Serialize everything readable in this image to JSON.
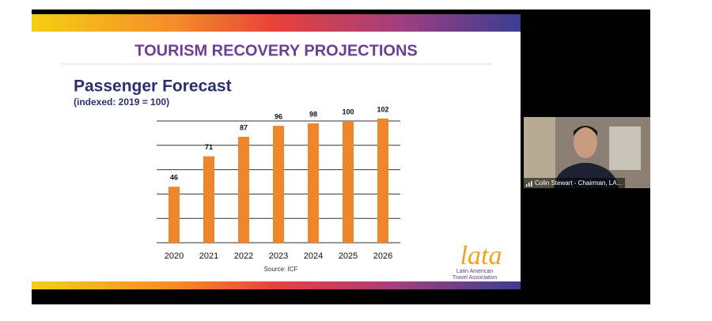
{
  "slide": {
    "title": "TOURISM RECOVERY PROJECTIONS",
    "logo": "lata",
    "logo_caption": [
      "Latin American",
      "Travel Association"
    ]
  },
  "chart_data": {
    "type": "bar",
    "title": "Passenger Forecast",
    "subtitle": "(indexed: 2019 = 100)",
    "source": "Source:  ICF",
    "categories": [
      "2020",
      "2021",
      "2022",
      "2023",
      "2024",
      "2025",
      "2026"
    ],
    "values": [
      46,
      71,
      87,
      96,
      98,
      100,
      102
    ],
    "color": "#f0862c",
    "ylim": [
      0,
      100
    ],
    "yticks": [
      0,
      20,
      40,
      60,
      80,
      100
    ],
    "grid": true
  },
  "participant": {
    "name": "Colin Stewart - Chairman, LA..."
  }
}
